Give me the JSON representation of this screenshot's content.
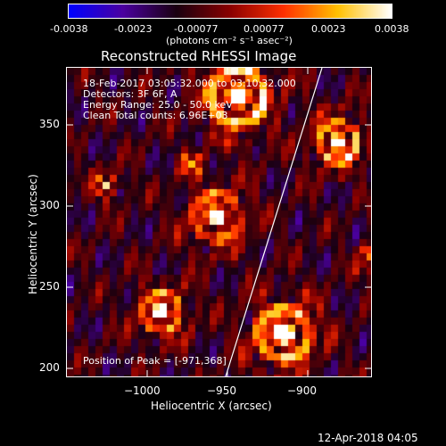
{
  "colorbar": {
    "tick_labels": [
      "-0.0038",
      "-0.0023",
      "-0.00077",
      "0.00077",
      "0.0023",
      "0.0038"
    ],
    "units_label": "(photons cm⁻² s⁻¹ asec⁻²)",
    "colormap": [
      "#0000ff",
      "#4b00a0",
      "#1a0010",
      "#8a0000",
      "#ff3000",
      "#ffc000",
      "#ffffff"
    ]
  },
  "plot": {
    "title": "Reconstructed RHESSI Image",
    "time_range": "18-Feb-2017 03:05:32.000 to 03:10:32.000",
    "detectors": "Detectors: 3F 6F, A",
    "energy_range": "Energy Range: 25.0 - 50.0 keV",
    "clean_counts": "Clean    Total counts: 6.96E+03",
    "peak_position": "Position of Peak = [-971,368]",
    "xlabel": "Heliocentric X (arcsec)",
    "ylabel": "Heliocentric Y (arcsec)",
    "x_ticks": [
      "−1000",
      "−950",
      "−900"
    ],
    "y_ticks": [
      "350",
      "300",
      "250",
      "200"
    ],
    "limb_line_color": "#ffffff"
  },
  "timestamp": "12-Apr-2018 04:05"
}
